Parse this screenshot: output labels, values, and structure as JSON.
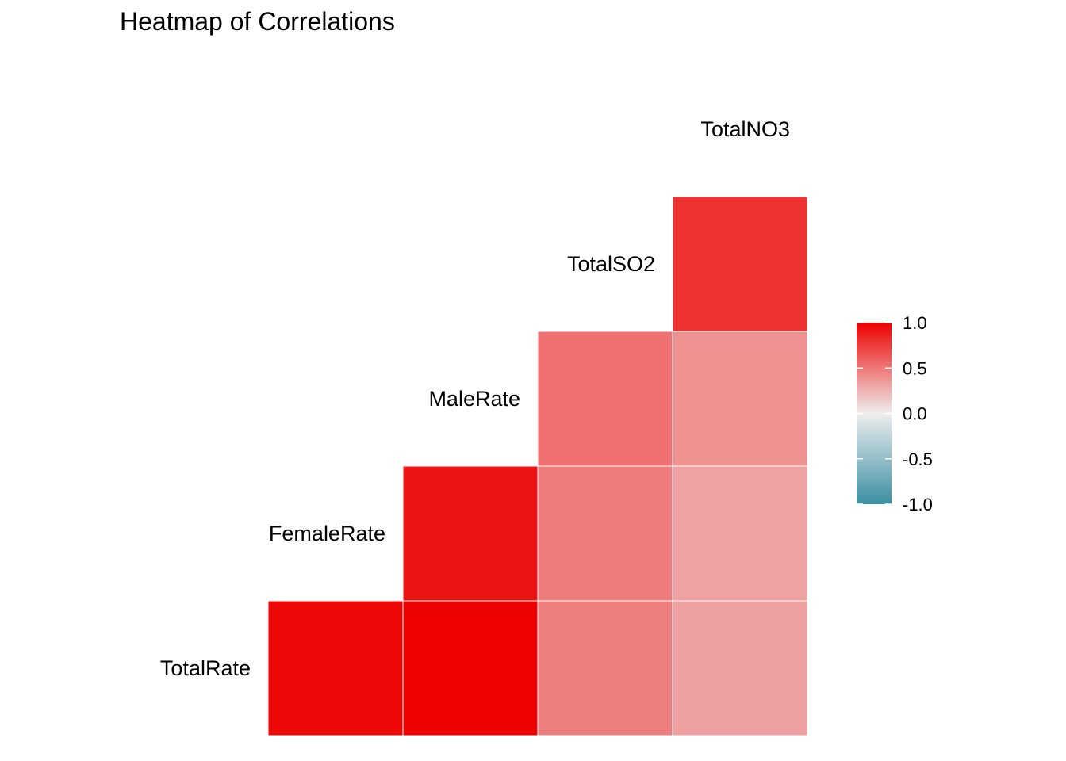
{
  "chart_data": {
    "type": "heatmap",
    "title": "Heatmap of Correlations",
    "variables": [
      "TotalRate",
      "FemaleRate",
      "MaleRate",
      "TotalSO2",
      "TotalNO3"
    ],
    "columns": [
      "TotalRate",
      "FemaleRate",
      "MaleRate",
      "TotalSO2",
      "TotalNO3"
    ],
    "rows": [
      "TotalRate",
      "FemaleRate",
      "MaleRate",
      "TotalSO2"
    ],
    "cells": [
      {
        "row": "TotalRate",
        "col": "TotalRate",
        "value": 0.97
      },
      {
        "row": "TotalRate",
        "col": "FemaleRate",
        "value": 0.99
      },
      {
        "row": "TotalRate",
        "col": "MaleRate",
        "value": 0.47
      },
      {
        "row": "TotalRate",
        "col": "TotalSO2",
        "value": 0.33
      },
      {
        "row": "FemaleRate",
        "col": "FemaleRate",
        "value": 0.92
      },
      {
        "row": "FemaleRate",
        "col": "MaleRate",
        "value": 0.48
      },
      {
        "row": "FemaleRate",
        "col": "TotalSO2",
        "value": 0.32
      },
      {
        "row": "MaleRate",
        "col": "MaleRate",
        "value": 0.53
      },
      {
        "row": "MaleRate",
        "col": "TotalSO2",
        "value": 0.39
      },
      {
        "row": "TotalSO2",
        "col": "TotalSO2",
        "value": 0.79
      }
    ],
    "legend": {
      "position": "right",
      "min": -1.0,
      "max": 1.0,
      "ticks": [
        1.0,
        0.5,
        0.0,
        -0.5,
        -1.0
      ],
      "tick_labels": [
        "1.0",
        "0.5",
        "0.0",
        "-0.5",
        "-1.0"
      ],
      "colors": {
        "low": "#3a8fa3",
        "mid": "#eeeeee",
        "high": "#ee0000"
      }
    },
    "grid": false
  }
}
